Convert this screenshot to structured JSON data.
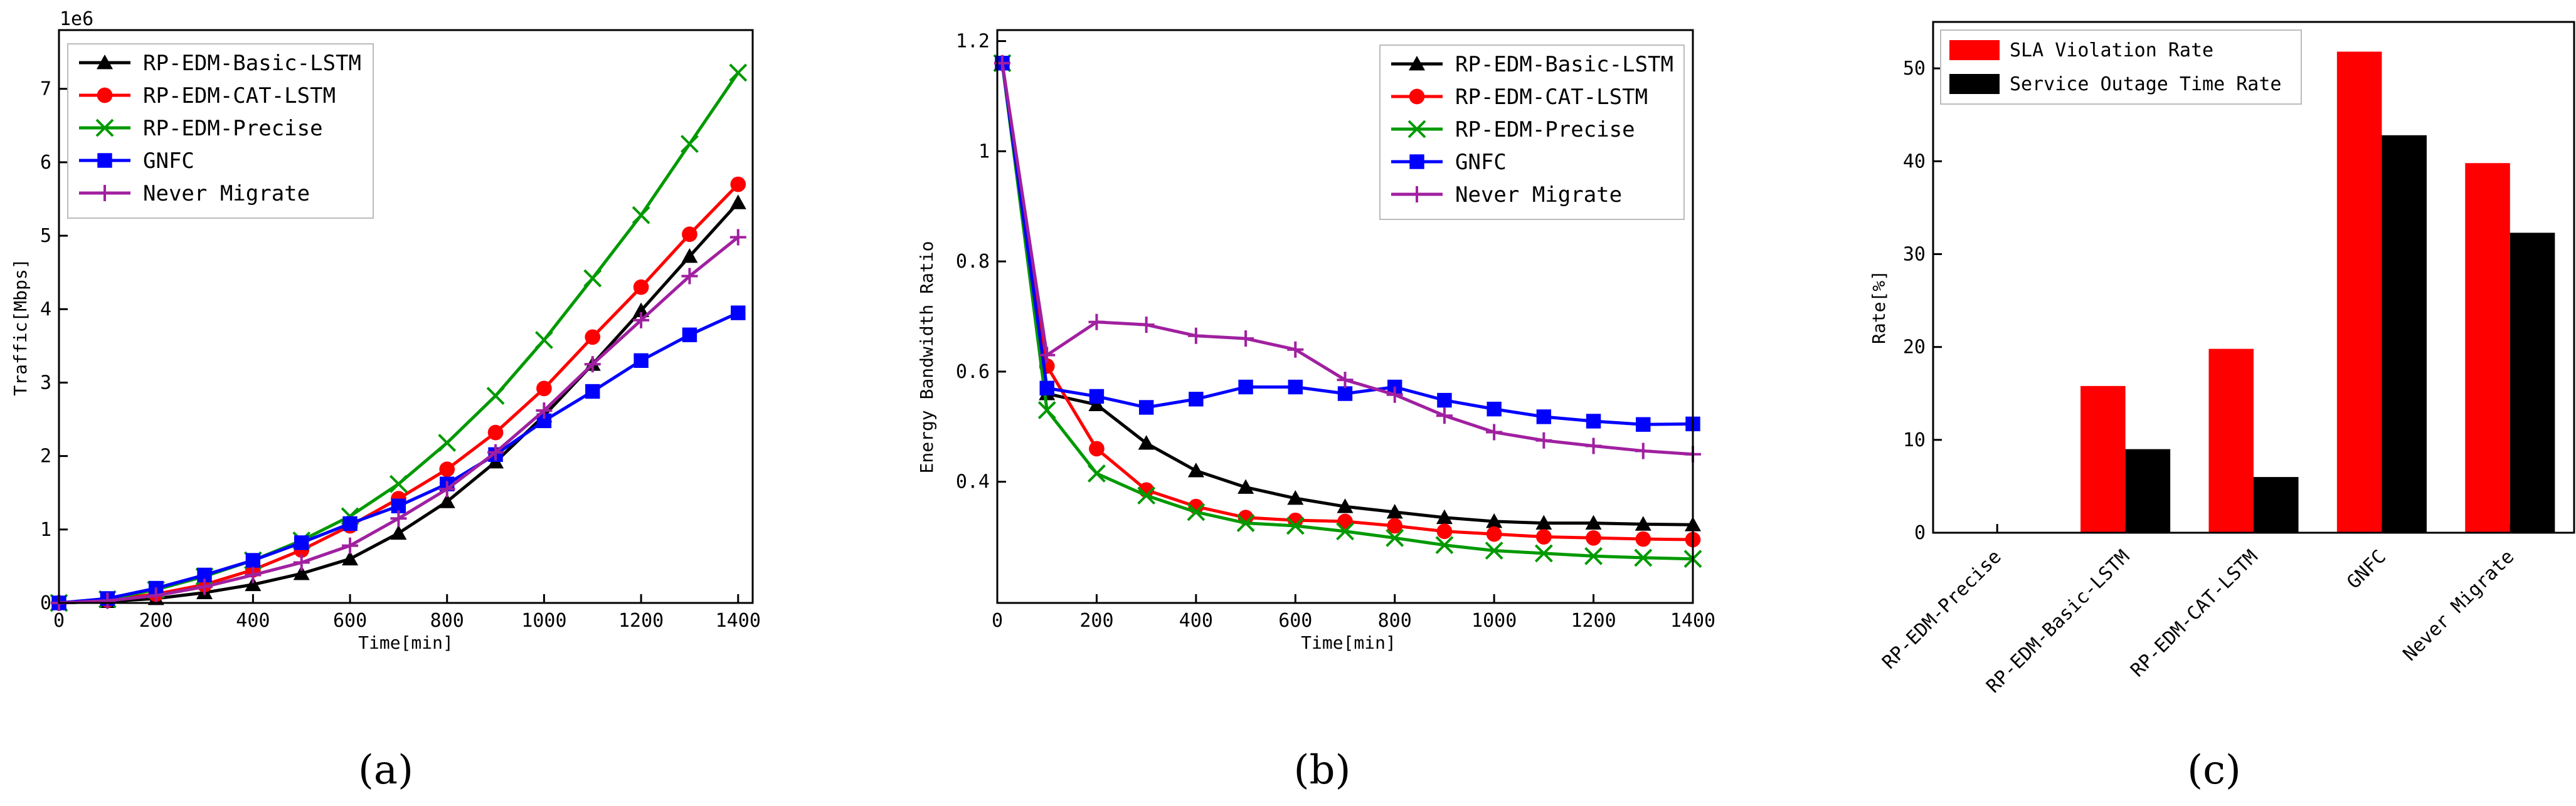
{
  "chart_data": [
    {
      "id": "a",
      "type": "line",
      "panel_label": "(a)",
      "xlabel": "Time[min]",
      "ylabel": "Traffic[Mbps]",
      "y_multiplier": "1e6",
      "xlim": [
        0,
        1430
      ],
      "ylim": [
        0,
        7.8
      ],
      "xticks": [
        0,
        200,
        400,
        600,
        800,
        1000,
        1200,
        1400
      ],
      "yticks": [
        0,
        1,
        2,
        3,
        4,
        5,
        6,
        7
      ],
      "legend_position": "top-left",
      "x": [
        0,
        100,
        200,
        300,
        400,
        500,
        600,
        700,
        800,
        900,
        1000,
        1100,
        1200,
        1300,
        1400
      ],
      "series": [
        {
          "name": "RP-EDM-Basic-LSTM",
          "color": "#000000",
          "marker": "triangle",
          "values": [
            0,
            0.02,
            0.06,
            0.14,
            0.25,
            0.4,
            0.6,
            0.95,
            1.38,
            1.92,
            2.55,
            3.25,
            3.98,
            4.72,
            5.45
          ]
        },
        {
          "name": "RP-EDM-CAT-LSTM",
          "color": "#ff0000",
          "marker": "circle",
          "values": [
            0,
            0.04,
            0.12,
            0.25,
            0.45,
            0.72,
            1.05,
            1.42,
            1.82,
            2.32,
            2.92,
            3.62,
            4.3,
            5.02,
            5.7
          ]
        },
        {
          "name": "RP-EDM-Precise",
          "color": "#009900",
          "marker": "x",
          "values": [
            0,
            0.05,
            0.18,
            0.36,
            0.58,
            0.85,
            1.18,
            1.62,
            2.18,
            2.82,
            3.58,
            4.42,
            5.28,
            6.25,
            7.22
          ]
        },
        {
          "name": "GNFC",
          "color": "#0000ff",
          "marker": "square",
          "values": [
            0,
            0.06,
            0.2,
            0.38,
            0.58,
            0.82,
            1.08,
            1.32,
            1.62,
            2.02,
            2.48,
            2.88,
            3.3,
            3.65,
            3.95
          ]
        },
        {
          "name": "Never Migrate",
          "color": "#a020a0",
          "marker": "plus",
          "values": [
            0,
            0.03,
            0.1,
            0.22,
            0.38,
            0.55,
            0.78,
            1.15,
            1.55,
            2.05,
            2.62,
            3.25,
            3.85,
            4.45,
            4.98
          ]
        }
      ]
    },
    {
      "id": "b",
      "type": "line",
      "panel_label": "(b)",
      "xlabel": "Time[min]",
      "ylabel": "Energy Bandwidth Ratio",
      "xlim": [
        0,
        1400
      ],
      "ylim": [
        0.18,
        1.22
      ],
      "xticks": [
        0,
        200,
        400,
        600,
        800,
        1000,
        1200,
        1400
      ],
      "yticks": [
        0.4,
        0.6,
        0.8,
        1.0,
        1.2
      ],
      "legend_position": "top-right",
      "x": [
        10,
        100,
        200,
        300,
        400,
        500,
        600,
        700,
        800,
        900,
        1000,
        1100,
        1200,
        1300,
        1400
      ],
      "series": [
        {
          "name": "RP-EDM-Basic-LSTM",
          "color": "#000000",
          "marker": "triangle",
          "values": [
            1.16,
            0.56,
            0.54,
            0.47,
            0.42,
            0.39,
            0.37,
            0.355,
            0.345,
            0.335,
            0.328,
            0.325,
            0.325,
            0.323,
            0.322
          ]
        },
        {
          "name": "RP-EDM-CAT-LSTM",
          "color": "#ff0000",
          "marker": "circle",
          "values": [
            1.16,
            0.61,
            0.46,
            0.385,
            0.355,
            0.335,
            0.33,
            0.328,
            0.32,
            0.31,
            0.305,
            0.3,
            0.298,
            0.296,
            0.295
          ]
        },
        {
          "name": "RP-EDM-Precise",
          "color": "#009900",
          "marker": "x",
          "values": [
            1.16,
            0.53,
            0.415,
            0.375,
            0.345,
            0.325,
            0.32,
            0.31,
            0.298,
            0.285,
            0.275,
            0.27,
            0.265,
            0.262,
            0.26
          ]
        },
        {
          "name": "GNFC",
          "color": "#0000ff",
          "marker": "square",
          "values": [
            1.16,
            0.57,
            0.555,
            0.535,
            0.55,
            0.572,
            0.572,
            0.56,
            0.572,
            0.548,
            0.532,
            0.518,
            0.51,
            0.504,
            0.505
          ]
        },
        {
          "name": "Never Migrate",
          "color": "#a020a0",
          "marker": "plus",
          "values": [
            1.16,
            0.63,
            0.69,
            0.685,
            0.665,
            0.66,
            0.64,
            0.585,
            0.558,
            0.52,
            0.49,
            0.475,
            0.465,
            0.456,
            0.45
          ]
        }
      ]
    },
    {
      "id": "c",
      "type": "bar",
      "panel_label": "(c)",
      "xlabel": "",
      "ylabel": "Rate[%]",
      "ylim": [
        0,
        55
      ],
      "yticks": [
        0,
        10,
        20,
        30,
        40,
        50
      ],
      "legend_position": "top-left",
      "categories": [
        "RP-EDM-Precise",
        "RP-EDM-Basic-LSTM",
        "RP-EDM-CAT-LSTM",
        "GNFC",
        "Never Migrate"
      ],
      "series": [
        {
          "name": "SLA Violation Rate",
          "color": "#ff0000",
          "values": [
            0,
            15.8,
            19.8,
            51.8,
            39.8
          ]
        },
        {
          "name": "Service Outage Time Rate",
          "color": "#000000",
          "values": [
            0,
            9.0,
            6.0,
            42.8,
            32.3
          ]
        }
      ]
    }
  ]
}
